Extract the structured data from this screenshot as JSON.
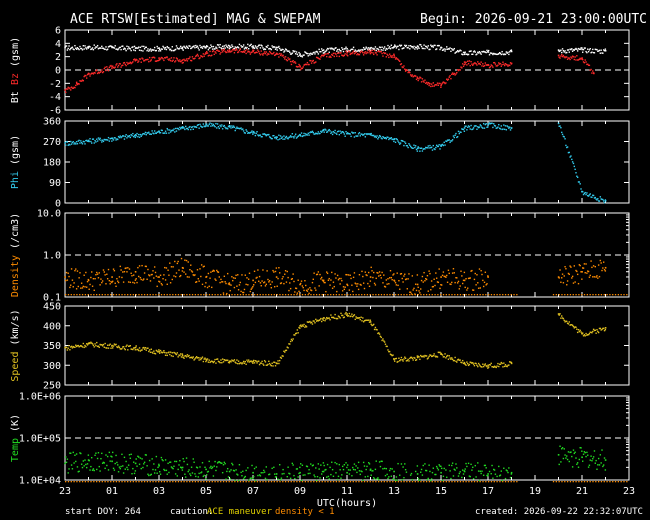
{
  "header": {
    "title": "ACE RTSW[Estimated] MAG & SWEPAM",
    "begin": "Begin: 2026-09-21 23:00:00UTC"
  },
  "footer": {
    "start_doy": "start DOY: 264",
    "caution_label": "caution:",
    "caution_maneuver": "ACE maneuver",
    "caution_density": "density < 1",
    "created": "created: 2026-09-22 22:32:07UTC"
  },
  "colors": {
    "bt": "#ffffff",
    "bz": "#ff2a2a",
    "phi": "#33ccee",
    "density": "#ff8c00",
    "speed": "#e0c020",
    "temp": "#22dd22",
    "maneuver": "#e0d000",
    "density_flag": "#ff8c00"
  },
  "chart_data": [
    {
      "type": "scatter",
      "panel": "mag",
      "ylabel_parts": [
        "Bt",
        "Bz",
        "(gsm)"
      ],
      "ylim": [
        -6,
        6
      ],
      "yticks": [
        "6",
        "4",
        "2",
        "0",
        "-2",
        "-4",
        "-6"
      ],
      "reference_line": 0,
      "series": [
        {
          "name": "Bt",
          "color": "#ffffff",
          "points": [
            [
              0,
              3.4
            ],
            [
              1,
              3.5
            ],
            [
              2,
              3.4
            ],
            [
              3,
              3.3
            ],
            [
              4,
              3.3
            ],
            [
              5,
              3.4
            ],
            [
              6,
              3.5
            ],
            [
              7,
              3.6
            ],
            [
              8,
              3.6
            ],
            [
              9,
              3.4
            ],
            [
              10,
              2.4
            ],
            [
              11,
              3.0
            ],
            [
              12,
              3.2
            ],
            [
              13,
              3.3
            ],
            [
              14,
              3.5
            ],
            [
              15,
              3.6
            ],
            [
              16,
              3.4
            ],
            [
              17,
              2.6
            ],
            [
              18,
              2.7
            ],
            [
              19,
              2.8
            ],
            [
              21,
              3.0
            ],
            [
              22,
              3.1
            ],
            [
              23,
              2.9
            ]
          ]
        },
        {
          "name": "Bz",
          "color": "#ff2a2a",
          "points": [
            [
              0,
              -3.0
            ],
            [
              0.5,
              -2.0
            ],
            [
              1,
              -0.5
            ],
            [
              2,
              0.5
            ],
            [
              3,
              1.5
            ],
            [
              4,
              1.8
            ],
            [
              5,
              1.5
            ],
            [
              6,
              2.5
            ],
            [
              7,
              3.0
            ],
            [
              8,
              2.8
            ],
            [
              9,
              2.5
            ],
            [
              10,
              0.5
            ],
            [
              11,
              2.2
            ],
            [
              12,
              2.6
            ],
            [
              13,
              2.8
            ],
            [
              14,
              2.2
            ],
            [
              14.5,
              0.0
            ],
            [
              15,
              -1.2
            ],
            [
              15.5,
              -2.0
            ],
            [
              16,
              -2.3
            ],
            [
              17,
              1.2
            ],
            [
              18,
              0.8
            ],
            [
              19,
              1.0
            ],
            [
              21,
              2.2
            ],
            [
              22,
              1.8
            ],
            [
              22.5,
              -0.5
            ]
          ]
        }
      ]
    },
    {
      "type": "scatter",
      "panel": "phi",
      "ylabel_parts": [
        "Phi",
        "(gsm)"
      ],
      "ylim": [
        0,
        360
      ],
      "yticks": [
        "360",
        "270",
        "180",
        "90",
        "0"
      ],
      "series": [
        {
          "name": "Phi",
          "color": "#33ccee",
          "points": [
            [
              0,
              265
            ],
            [
              1,
              275
            ],
            [
              2,
              285
            ],
            [
              3,
              300
            ],
            [
              4,
              315
            ],
            [
              5,
              330
            ],
            [
              6,
              345
            ],
            [
              7,
              335
            ],
            [
              8,
              310
            ],
            [
              9,
              290
            ],
            [
              10,
              300
            ],
            [
              11,
              320
            ],
            [
              12,
              305
            ],
            [
              13,
              300
            ],
            [
              14,
              280
            ],
            [
              15,
              240
            ],
            [
              16,
              250
            ],
            [
              17,
              330
            ],
            [
              18,
              345
            ],
            [
              19,
              330
            ],
            [
              21,
              350
            ],
            [
              22,
              50
            ],
            [
              23,
              10
            ]
          ]
        }
      ]
    },
    {
      "type": "scatter",
      "panel": "density",
      "ylabel_parts": [
        "Density",
        "(/cm3)"
      ],
      "yscale": "log",
      "ylim": [
        0.1,
        10
      ],
      "yticks": [
        "10.0",
        "1.0",
        "0.1"
      ],
      "reference_line": 1.0,
      "series": [
        {
          "name": "Density",
          "color": "#ff8c00",
          "points": [
            [
              0,
              0.3
            ],
            [
              1,
              0.25
            ],
            [
              2,
              0.3
            ],
            [
              3,
              0.4
            ],
            [
              4,
              0.3
            ],
            [
              5,
              0.5
            ],
            [
              6,
              0.3
            ],
            [
              7,
              0.2
            ],
            [
              8,
              0.25
            ],
            [
              9,
              0.3
            ],
            [
              10,
              0.2
            ],
            [
              11,
              0.25
            ],
            [
              12,
              0.2
            ],
            [
              13,
              0.3
            ],
            [
              14,
              0.25
            ],
            [
              15,
              0.2
            ],
            [
              16,
              0.3
            ],
            [
              17,
              0.25
            ],
            [
              18,
              0.3
            ],
            [
              21,
              0.3
            ],
            [
              22,
              0.4
            ],
            [
              23,
              0.5
            ]
          ]
        }
      ]
    },
    {
      "type": "scatter",
      "panel": "speed",
      "ylabel_parts": [
        "Speed",
        "(km/s)"
      ],
      "ylim": [
        250,
        450
      ],
      "yticks": [
        "450",
        "400",
        "350",
        "300",
        "250"
      ],
      "series": [
        {
          "name": "Speed",
          "color": "#e0c020",
          "points": [
            [
              0,
              345
            ],
            [
              1,
              355
            ],
            [
              2,
              350
            ],
            [
              3,
              345
            ],
            [
              4,
              335
            ],
            [
              5,
              325
            ],
            [
              6,
              315
            ],
            [
              7,
              310
            ],
            [
              8,
              310
            ],
            [
              9,
              305
            ],
            [
              10,
              400
            ],
            [
              11,
              420
            ],
            [
              12,
              430
            ],
            [
              13,
              410
            ],
            [
              14,
              315
            ],
            [
              15,
              320
            ],
            [
              16,
              330
            ],
            [
              17,
              305
            ],
            [
              18,
              300
            ],
            [
              19,
              305
            ],
            [
              21,
              430
            ],
            [
              22,
              380
            ],
            [
              23,
              395
            ]
          ]
        }
      ]
    },
    {
      "type": "scatter",
      "panel": "temp",
      "ylabel_parts": [
        "Temp",
        "(K)"
      ],
      "yscale": "log",
      "ylim": [
        10000,
        1000000
      ],
      "yticks": [
        "1.0E+06",
        "1.0E+05",
        "1.0E+04"
      ],
      "reference_line": 100000,
      "xlabel": "UTC(hours)",
      "xticks": [
        "23",
        "01",
        "03",
        "05",
        "07",
        "09",
        "11",
        "13",
        "15",
        "17",
        "19",
        "21",
        "23"
      ],
      "series": [
        {
          "name": "Temp",
          "color": "#22dd22",
          "points": [
            [
              0,
              25000
            ],
            [
              1,
              30000
            ],
            [
              2,
              28000
            ],
            [
              3,
              25000
            ],
            [
              4,
              22000
            ],
            [
              5,
              20000
            ],
            [
              6,
              18000
            ],
            [
              7,
              16000
            ],
            [
              8,
              15000
            ],
            [
              9,
              14000
            ],
            [
              10,
              15000
            ],
            [
              11,
              16000
            ],
            [
              12,
              15000
            ],
            [
              13,
              18000
            ],
            [
              14,
              16000
            ],
            [
              15,
              14000
            ],
            [
              16,
              15000
            ],
            [
              17,
              16000
            ],
            [
              18,
              14000
            ],
            [
              19,
              15000
            ],
            [
              21,
              40000
            ],
            [
              22,
              35000
            ],
            [
              23,
              30000
            ]
          ]
        }
      ]
    }
  ]
}
